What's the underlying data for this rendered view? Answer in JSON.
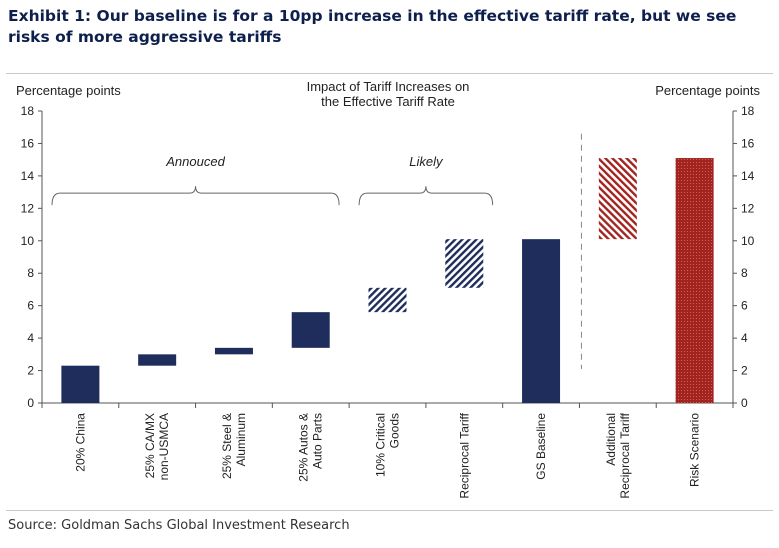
{
  "exhibit": {
    "title": "Exhibit 1: Our baseline is for a 10pp increase in the effective tariff rate, but we see risks of more aggressive tariffs",
    "source": "Source: Goldman Sachs Global Investment Research"
  },
  "chart_data": {
    "type": "bar",
    "subtype": "waterfall",
    "title_lines": [
      "Impact of Tariff Increases on",
      "the Effective Tariff Rate"
    ],
    "ylabel_left": "Percentage  points",
    "ylabel_right": "Percentage  points",
    "ylim": [
      0,
      18
    ],
    "yticks": [
      0,
      2,
      4,
      6,
      8,
      10,
      12,
      14,
      16,
      18
    ],
    "categories": [
      {
        "label": [
          "20% China"
        ],
        "start": 0,
        "end": 2.3,
        "style": "solid",
        "color": "#1e2d5c"
      },
      {
        "label": [
          "25% CA/MX",
          "non-USMCA"
        ],
        "start": 2.3,
        "end": 3.0,
        "style": "solid",
        "color": "#1e2d5c"
      },
      {
        "label": [
          "25% Steel &",
          "Aluminum"
        ],
        "start": 3.0,
        "end": 3.4,
        "style": "solid",
        "color": "#1e2d5c"
      },
      {
        "label": [
          "25% Autos &",
          "Auto Parts"
        ],
        "start": 3.4,
        "end": 5.6,
        "style": "solid",
        "color": "#1e2d5c"
      },
      {
        "label": [
          "10% Critical",
          "Goods"
        ],
        "start": 5.6,
        "end": 7.1,
        "style": "hatched",
        "color": "#1e2d5c"
      },
      {
        "label": [
          "Reciprocal Tariff"
        ],
        "start": 7.1,
        "end": 10.1,
        "style": "hatched",
        "color": "#1e2d5c"
      },
      {
        "label": [
          "GS Baseline"
        ],
        "start": 0,
        "end": 10.1,
        "style": "solid",
        "color": "#1e2d5c"
      },
      {
        "label": [
          "Additional",
          "Reciprocal Tariff"
        ],
        "start": 10.1,
        "end": 15.1,
        "style": "hatched",
        "color": "#a3231f"
      },
      {
        "label": [
          "Risk Scenario"
        ],
        "start": 0,
        "end": 15.1,
        "style": "dotted",
        "color": "#a3231f"
      }
    ],
    "groups": [
      {
        "label": "Annouced",
        "from": 0,
        "to": 3
      },
      {
        "label": "Likely",
        "from": 4,
        "to": 5
      }
    ],
    "divider_after": 6,
    "colors": {
      "navy": "#1e2d5c",
      "red": "#a3231f"
    }
  }
}
